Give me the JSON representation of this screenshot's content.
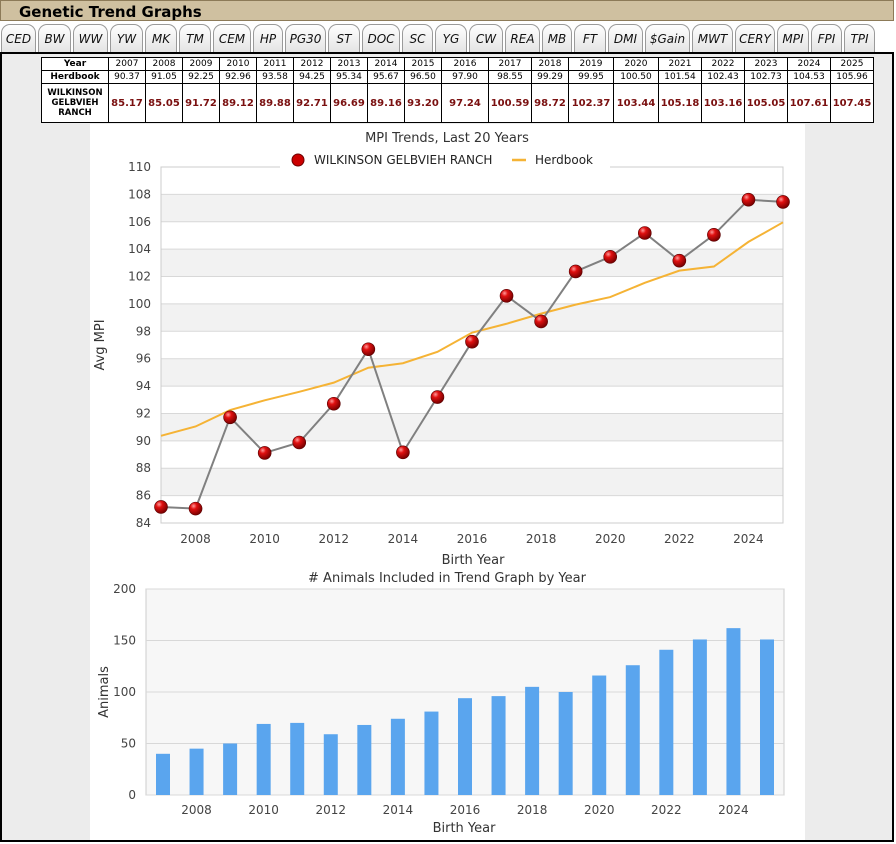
{
  "header": {
    "title": "Genetic Trend Graphs"
  },
  "tabs": [
    "CED",
    "BW",
    "WW",
    "YW",
    "MK",
    "TM",
    "CEM",
    "HP",
    "PG30",
    "ST",
    "DOC",
    "SC",
    "YG",
    "CW",
    "REA",
    "MB",
    "FT",
    "DMI",
    "$Gain",
    "MWT",
    "CERY",
    "MPI",
    "FPI",
    "TPI"
  ],
  "table": {
    "row_labels": {
      "year": "Year",
      "herdbook": "Herdbook",
      "ranch": "WILKINSON GELBVIEH RANCH"
    },
    "years": [
      "2007",
      "2008",
      "2009",
      "2010",
      "2011",
      "2012",
      "2013",
      "2014",
      "2015",
      "2016",
      "2017",
      "2018",
      "2019",
      "2020",
      "2021",
      "2022",
      "2023",
      "2024",
      "2025"
    ],
    "herdbook": [
      "90.37",
      "91.05",
      "92.25",
      "92.96",
      "93.58",
      "94.25",
      "95.34",
      "95.67",
      "96.50",
      "97.90",
      "98.55",
      "99.29",
      "99.95",
      "100.50",
      "101.54",
      "102.43",
      "102.73",
      "104.53",
      "105.96"
    ],
    "ranch": [
      "85.17",
      "85.05",
      "91.72",
      "89.12",
      "89.88",
      "92.71",
      "96.69",
      "89.16",
      "93.20",
      "97.24",
      "100.59",
      "98.72",
      "102.37",
      "103.44",
      "105.18",
      "103.16",
      "105.05",
      "107.61",
      "107.45"
    ]
  },
  "chart_data": [
    {
      "type": "line",
      "title": "MPI Trends, Last 20 Years",
      "xlabel": "Birth Year",
      "ylabel": "Avg MPI",
      "x": [
        2007,
        2008,
        2009,
        2010,
        2011,
        2012,
        2013,
        2014,
        2015,
        2016,
        2017,
        2018,
        2019,
        2020,
        2021,
        2022,
        2023,
        2024,
        2025
      ],
      "series": [
        {
          "name": "WILKINSON GELBVIEH RANCH",
          "values": [
            85.17,
            85.05,
            91.72,
            89.12,
            89.88,
            92.71,
            96.69,
            89.16,
            93.2,
            97.24,
            100.59,
            98.72,
            102.37,
            103.44,
            105.18,
            103.16,
            105.05,
            107.61,
            107.45
          ],
          "color": "#cc0000",
          "line_color": "#808080"
        },
        {
          "name": "Herdbook",
          "values": [
            90.37,
            91.05,
            92.25,
            92.96,
            93.58,
            94.25,
            95.34,
            95.67,
            96.5,
            97.9,
            98.55,
            99.29,
            99.95,
            100.5,
            101.54,
            102.43,
            102.73,
            104.53,
            105.96
          ],
          "color": "#f5b335"
        }
      ],
      "ylim": [
        84,
        110
      ],
      "yticks": [
        84,
        86,
        88,
        90,
        92,
        94,
        96,
        98,
        100,
        102,
        104,
        106,
        108,
        110
      ],
      "xticks": [
        2008,
        2010,
        2012,
        2014,
        2016,
        2018,
        2020,
        2022,
        2024
      ],
      "legend": "top-center",
      "grid": true
    },
    {
      "type": "bar",
      "title": "# Animals Included in Trend Graph by Year",
      "xlabel": "Birth Year",
      "ylabel": "Animals",
      "x": [
        2007,
        2008,
        2009,
        2010,
        2011,
        2012,
        2013,
        2014,
        2015,
        2016,
        2017,
        2018,
        2019,
        2020,
        2021,
        2022,
        2023,
        2024,
        2025
      ],
      "values": [
        40,
        45,
        50,
        69,
        70,
        59,
        68,
        74,
        81,
        94,
        96,
        105,
        100,
        116,
        126,
        141,
        151,
        162,
        151
      ],
      "color": "#5aa5ee",
      "ylim": [
        0,
        200
      ],
      "yticks": [
        0,
        50,
        100,
        150,
        200
      ],
      "xticks": [
        2008,
        2010,
        2012,
        2014,
        2016,
        2018,
        2020,
        2022,
        2024
      ],
      "grid": true
    }
  ]
}
